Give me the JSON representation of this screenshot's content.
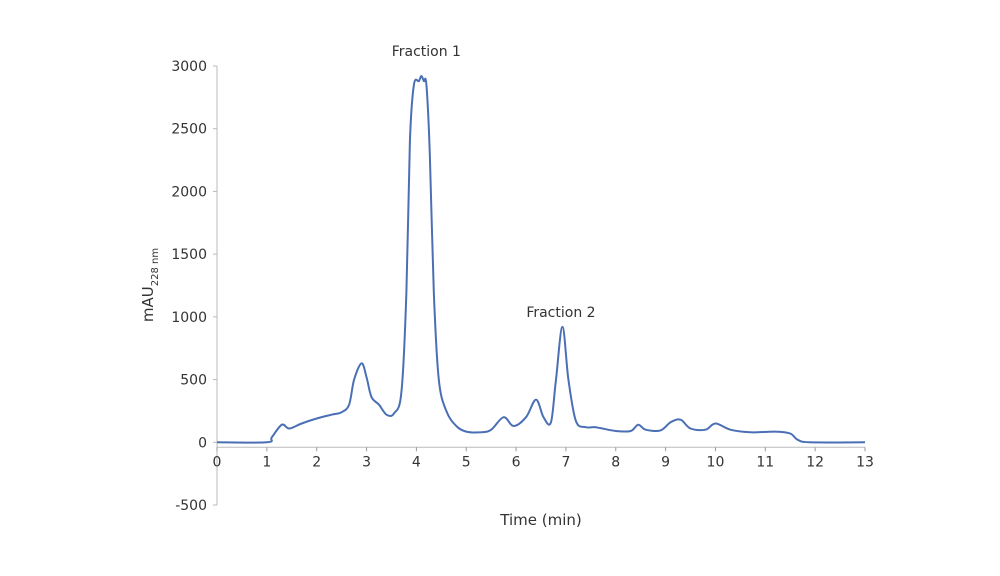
{
  "chart_data": {
    "type": "line",
    "title": "",
    "xlabel": "Time (min)",
    "ylabel": "mAU",
    "ylabel_subscript": "228 nm",
    "xlim": [
      0,
      13
    ],
    "ylim": [
      -500,
      3000
    ],
    "xticks": [
      0,
      1,
      2,
      3,
      4,
      5,
      6,
      7,
      8,
      9,
      10,
      11,
      12,
      13
    ],
    "yticks": [
      -500,
      0,
      500,
      1000,
      1500,
      2000,
      2500,
      3000
    ],
    "grid": false,
    "line_color": "#4a6fb5",
    "series": [
      {
        "x": [
          0,
          1.0,
          1.1,
          1.3,
          1.45,
          1.7,
          2.0,
          2.3,
          2.5,
          2.65,
          2.75,
          2.9,
          3.0,
          3.1,
          3.25,
          3.4,
          3.55,
          3.7,
          3.8,
          3.87,
          3.95,
          4.05,
          4.1,
          4.15,
          4.2,
          4.27,
          4.35,
          4.45,
          4.6,
          4.8,
          5.0,
          5.3,
          5.5,
          5.75,
          5.95,
          6.2,
          6.4,
          6.55,
          6.7,
          6.8,
          6.93,
          7.05,
          7.2,
          7.4,
          7.6,
          8.0,
          8.3,
          8.45,
          8.6,
          8.9,
          9.1,
          9.3,
          9.5,
          9.8,
          10.0,
          10.3,
          10.7,
          11.2,
          11.5,
          11.65,
          11.9,
          13
        ],
        "y": [
          0,
          0,
          40,
          140,
          110,
          150,
          190,
          220,
          240,
          300,
          500,
          630,
          520,
          360,
          300,
          220,
          230,
          400,
          1200,
          2400,
          2850,
          2880,
          2920,
          2880,
          2850,
          2300,
          1200,
          500,
          250,
          130,
          85,
          80,
          100,
          200,
          130,
          200,
          340,
          200,
          160,
          500,
          920,
          500,
          170,
          120,
          120,
          90,
          90,
          140,
          100,
          95,
          160,
          180,
          110,
          100,
          150,
          100,
          80,
          85,
          70,
          20,
          0,
          0
        ]
      }
    ],
    "annotations": [
      {
        "text": "Fraction 1",
        "x": 4.2,
        "y": 3080
      },
      {
        "text": "Fraction 2",
        "x": 6.9,
        "y": 1000
      }
    ]
  }
}
